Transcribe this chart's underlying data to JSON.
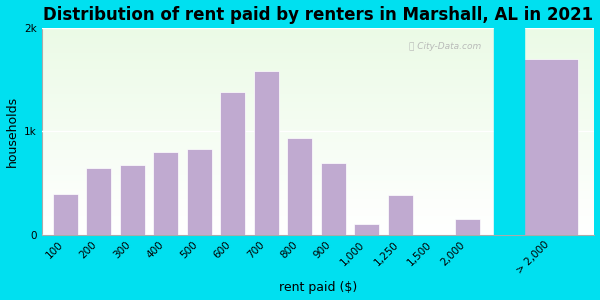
{
  "title": "Distribution of rent paid by renters in Marshall, AL in 2021",
  "xlabel": "rent paid ($)",
  "ylabel": "households",
  "background_outer": "#00e0f0",
  "bar_color": "#c0aad0",
  "bar_categories": [
    "100",
    "200",
    "300",
    "400",
    "500",
    "600",
    "700",
    "800",
    "900",
    "1,000",
    "1,250",
    "1,500",
    "2,000",
    "> 2,000"
  ],
  "bar_values": [
    390,
    640,
    670,
    800,
    830,
    1380,
    1580,
    930,
    690,
    100,
    380,
    0,
    155,
    1700
  ],
  "ylim": [
    0,
    2000
  ],
  "ytick_labels": [
    "0",
    "1k",
    "2k"
  ],
  "ytick_vals": [
    0,
    1000,
    2000
  ],
  "title_fontsize": 12,
  "axis_fontsize": 9,
  "tick_fontsize": 7.5,
  "gap_color": "#00e0f0"
}
